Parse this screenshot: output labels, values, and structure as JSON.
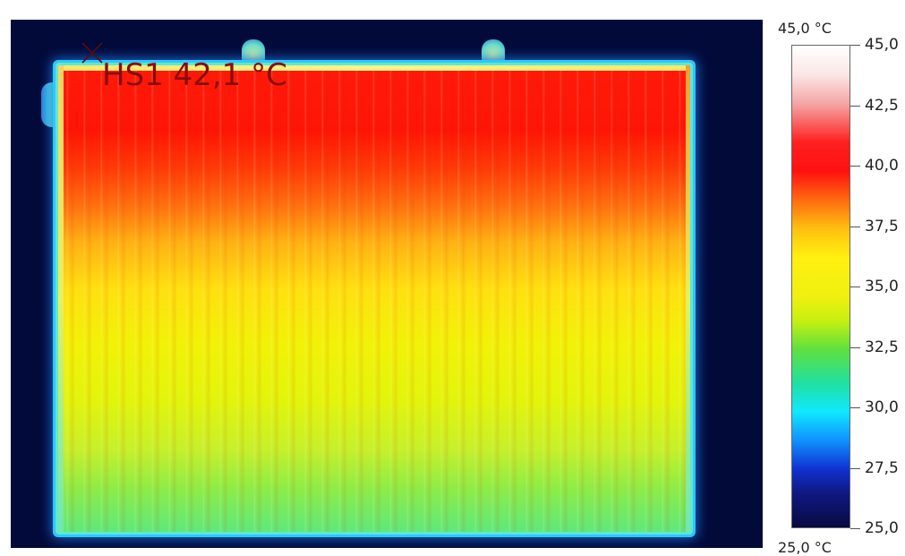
{
  "hotspot": {
    "label": "HS1 42,1 °C",
    "marker_icon": "crosshair-x-icon"
  },
  "scale": {
    "max_label": "45,0 °C",
    "min_label": "25,0 °C",
    "ticks": [
      "45,0",
      "42,5",
      "40,0",
      "37,5",
      "35,0",
      "32,5",
      "30,0",
      "27,5",
      "25,0"
    ],
    "min_value": 25.0,
    "max_value": 45.0
  },
  "colors": {
    "background": "#020a3a",
    "hot": "#ff1a0a",
    "warm": "#ffe010",
    "cool": "#5fe87c",
    "hotspot_text": "#8a0b0b"
  }
}
